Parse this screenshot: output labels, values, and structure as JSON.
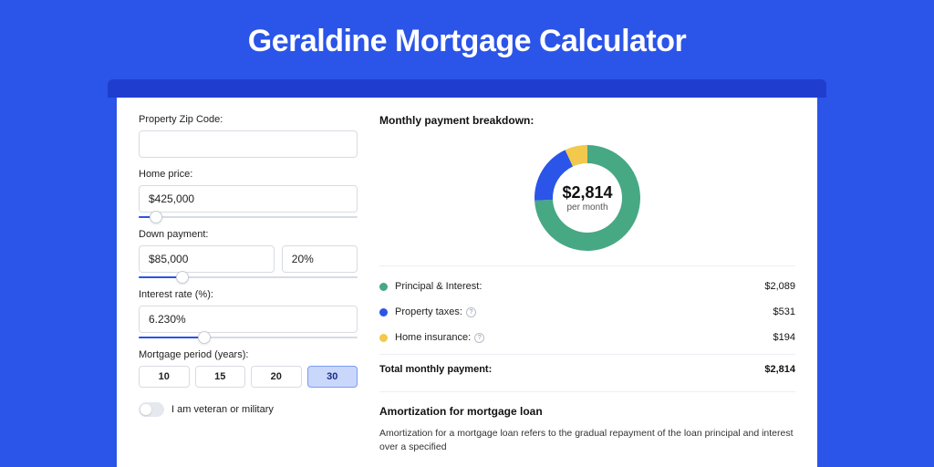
{
  "page": {
    "title": "Geraldine Mortgage Calculator",
    "bg_color": "#2b54e8",
    "header_bar_color": "#1f3ecf",
    "panel_bg": "#ffffff"
  },
  "form": {
    "zip": {
      "label": "Property Zip Code:",
      "value": ""
    },
    "home_price": {
      "label": "Home price:",
      "value": "$425,000",
      "slider_pct": 8
    },
    "down_payment": {
      "label": "Down payment:",
      "amount": "$85,000",
      "percent": "20%",
      "slider_pct": 20
    },
    "interest_rate": {
      "label": "Interest rate (%):",
      "value": "6.230%",
      "slider_pct": 30
    },
    "period": {
      "label": "Mortgage period (years):",
      "options": [
        "10",
        "15",
        "20",
        "30"
      ],
      "active_index": 3
    },
    "veteran": {
      "label": "I am veteran or military",
      "checked": false
    }
  },
  "breakdown": {
    "heading": "Monthly payment breakdown:",
    "center_value": "$2,814",
    "center_sub": "per month",
    "items": [
      {
        "label": "Principal & Interest:",
        "amount": "$2,089",
        "color": "#47a884",
        "fraction": 0.742,
        "has_info": false
      },
      {
        "label": "Property taxes:",
        "amount": "$531",
        "color": "#2b54e8",
        "fraction": 0.189,
        "has_info": true
      },
      {
        "label": "Home insurance:",
        "amount": "$194",
        "color": "#f2c94c",
        "fraction": 0.069,
        "has_info": true
      }
    ],
    "total": {
      "label": "Total monthly payment:",
      "amount": "$2,814"
    },
    "donut": {
      "outer_radius": 58,
      "inner_radius": 38,
      "size": 120
    }
  },
  "amortization": {
    "heading": "Amortization for mortgage loan",
    "body": "Amortization for a mortgage loan refers to the gradual repayment of the loan principal and interest over a specified"
  }
}
